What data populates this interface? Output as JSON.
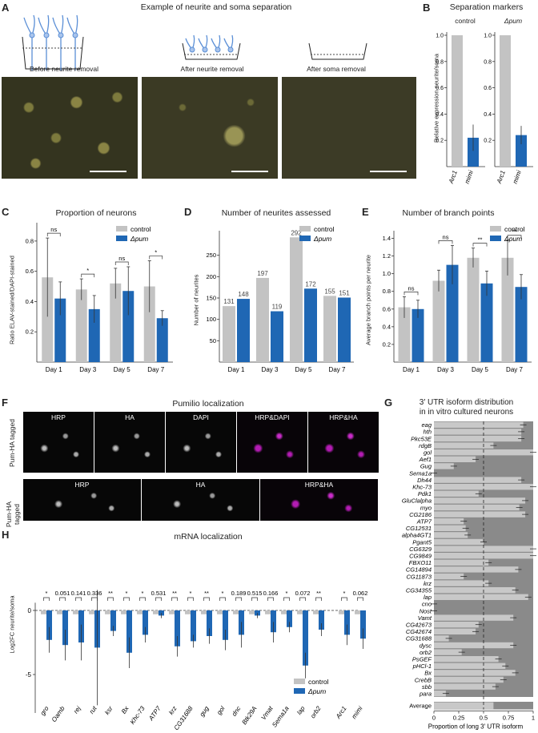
{
  "panelA": {
    "letter": "A",
    "title": "Example of neurite and soma separation",
    "labels": [
      "Before neurite removal",
      "After neurite removal",
      "After soma removal"
    ]
  },
  "panelB": {
    "letter": "B",
    "title": "Separation markers",
    "ylabel": "Relative expression neurite/soma",
    "yticks": [
      "0.2",
      "0.4",
      "0.6",
      "0.8",
      "1.0"
    ],
    "groups": [
      {
        "name": "control",
        "categories": [
          "Arc1",
          "mimi"
        ],
        "values": [
          1.0,
          0.22
        ],
        "err": [
          0,
          0.1
        ]
      },
      {
        "name": "Δpum",
        "categories": [
          "Arc1",
          "mimi"
        ],
        "values": [
          1.0,
          0.24
        ],
        "err": [
          0,
          0.07
        ]
      }
    ]
  },
  "panelC": {
    "letter": "C",
    "title": "Proportion of neurons",
    "ylabel": "Ratio ELAV-stained/DAPI-stained",
    "categories": [
      "Day 1",
      "Day 3",
      "Day 5",
      "Day 7"
    ],
    "control": [
      0.56,
      0.48,
      0.52,
      0.5
    ],
    "control_err": [
      0.26,
      0.07,
      0.1,
      0.17
    ],
    "mutant": [
      0.42,
      0.35,
      0.47,
      0.29
    ],
    "mutant_err": [
      0.11,
      0.09,
      0.16,
      0.05
    ],
    "sig": [
      "ns",
      "*",
      "ns",
      "*"
    ],
    "yticks": [
      "0.2",
      "0.4",
      "0.6",
      "0.8"
    ]
  },
  "panelD": {
    "letter": "D",
    "title": "Number of neurites assessed",
    "ylabel": "Number of neurites",
    "categories": [
      "Day 1",
      "Day 3",
      "Day 5",
      "Day 7"
    ],
    "control": [
      131,
      197,
      292,
      155
    ],
    "mutant": [
      148,
      119,
      172,
      151
    ],
    "control_labels": [
      "131",
      "197",
      "292",
      "155"
    ],
    "mutant_labels": [
      "148",
      "119",
      "172",
      "151"
    ],
    "yticks": [
      "50",
      "100",
      "150",
      "200",
      "250"
    ]
  },
  "panelE": {
    "letter": "E",
    "title": "Number of branch points",
    "ylabel": "Average branch points per neurite",
    "categories": [
      "Day 1",
      "Day 3",
      "Day 5",
      "Day 7"
    ],
    "control": [
      0.62,
      0.92,
      1.18,
      1.18
    ],
    "control_err": [
      0.12,
      0.12,
      0.11,
      0.2
    ],
    "mutant": [
      0.6,
      1.1,
      0.89,
      0.85
    ],
    "mutant_err": [
      0.1,
      0.22,
      0.14,
      0.14
    ],
    "sig": [
      "ns",
      "ns",
      "**",
      "**"
    ],
    "yticks": [
      "0.2",
      "0.4",
      "0.6",
      "0.8",
      "1.0",
      "1.2",
      "1.4"
    ]
  },
  "legend": {
    "control": "control",
    "mutant": "Δpum"
  },
  "panelF": {
    "letter": "F",
    "title": "Pumilio localization",
    "row1_side": "Pum-HA tagged",
    "row2_side": "Pum-HA tagged",
    "row1": [
      "HRP",
      "HA",
      "DAPI",
      "HRP&DAPI",
      "HRP&HA"
    ],
    "row2": [
      "HRP",
      "HA",
      "HRP&HA"
    ]
  },
  "panelG": {
    "letter": "G",
    "title1": "3′ UTR isoform distribution",
    "title2": "in in vitro cultured neurons",
    "xlabel": "Proportion of long 3′ UTR isoform",
    "xticks": [
      "0",
      "0.25",
      "0.5",
      "0.75",
      "1"
    ],
    "genes": [
      "eag",
      "hth",
      "Pkc53E",
      "rdgB",
      "gol",
      "Aef1",
      "Gug",
      "Sema1a",
      "Dh44",
      "Khc-73",
      "Pdk1",
      "GluClalpha",
      "myo",
      "CG2186",
      "ATP7",
      "CG12531",
      "alpha4GT1",
      "Pgant5",
      "CG6329",
      "CG9849",
      "FBXO11",
      "CG14894",
      "CG11873",
      "krz",
      "CG34355",
      "lap",
      "cno",
      "Nost",
      "Vamt",
      "CG42673",
      "CG42674",
      "CG31688",
      "dysc",
      "orb2",
      "PsGEF",
      "pHCl-1",
      "Bx",
      "CrebB",
      "sbb",
      "para"
    ],
    "values": [
      0.9,
      0.88,
      0.88,
      0.6,
      1.0,
      0.42,
      0.2,
      0.0,
      0.88,
      1.0,
      0.45,
      0.92,
      0.86,
      0.92,
      0.3,
      0.32,
      0.34,
      0.5,
      1.0,
      1.0,
      0.55,
      0.85,
      0.3,
      0.55,
      0.82,
      0.95,
      0.0,
      0.0,
      0.8,
      0.45,
      0.42,
      0.15,
      0.8,
      0.28,
      0.65,
      0.72,
      0.82,
      0.7,
      0.62,
      0.12
    ],
    "average_label": "Average",
    "average": 0.6
  },
  "panelH": {
    "letter": "H",
    "title": "mRNA localization",
    "ylabel": "Log2FC neurite/soma",
    "yticks": [
      "0",
      "-5"
    ],
    "genes": [
      "gro",
      "Oamb",
      "rej",
      "rut",
      "ksr",
      "Bx",
      "Khc-73",
      "ATP7",
      "krz",
      "CG31688",
      "gug",
      "gol",
      "dnc",
      "Btk29A",
      "Vmat",
      "Sema1a",
      "lap",
      "orb2",
      "Arc1",
      "mimi"
    ],
    "control": [
      -0.3,
      -0.3,
      -0.3,
      -0.3,
      -0.3,
      -0.3,
      -0.3,
      -0.3,
      -0.3,
      -0.3,
      -0.3,
      -0.3,
      -0.3,
      -0.3,
      -0.3,
      -0.3,
      -0.3,
      -0.3,
      -0.3,
      -0.3
    ],
    "mutant": [
      -2.3,
      -2.7,
      -2.5,
      -2.9,
      -1.6,
      -3.3,
      -1.9,
      -0.4,
      -2.8,
      -2.4,
      -2.0,
      -2.3,
      -1.9,
      -0.4,
      -1.7,
      -1.3,
      -4.3,
      -1.5,
      -1.9,
      -2.2
    ],
    "mutant_err": [
      1.0,
      1.2,
      1.4,
      4.5,
      0.4,
      1.2,
      0.6,
      0.2,
      0.8,
      0.5,
      0.6,
      0.8,
      1.0,
      0.2,
      0.8,
      0.4,
      1.0,
      0.5,
      0.8,
      0.8
    ],
    "sig": [
      "*",
      "0.051",
      "0.141",
      "0.336",
      "**",
      "*",
      "*",
      "0.531",
      "**",
      "*",
      "**",
      "*",
      "0.189",
      "0.515",
      "0.166",
      "*",
      "0.072",
      "**",
      "*",
      "0.062"
    ]
  }
}
